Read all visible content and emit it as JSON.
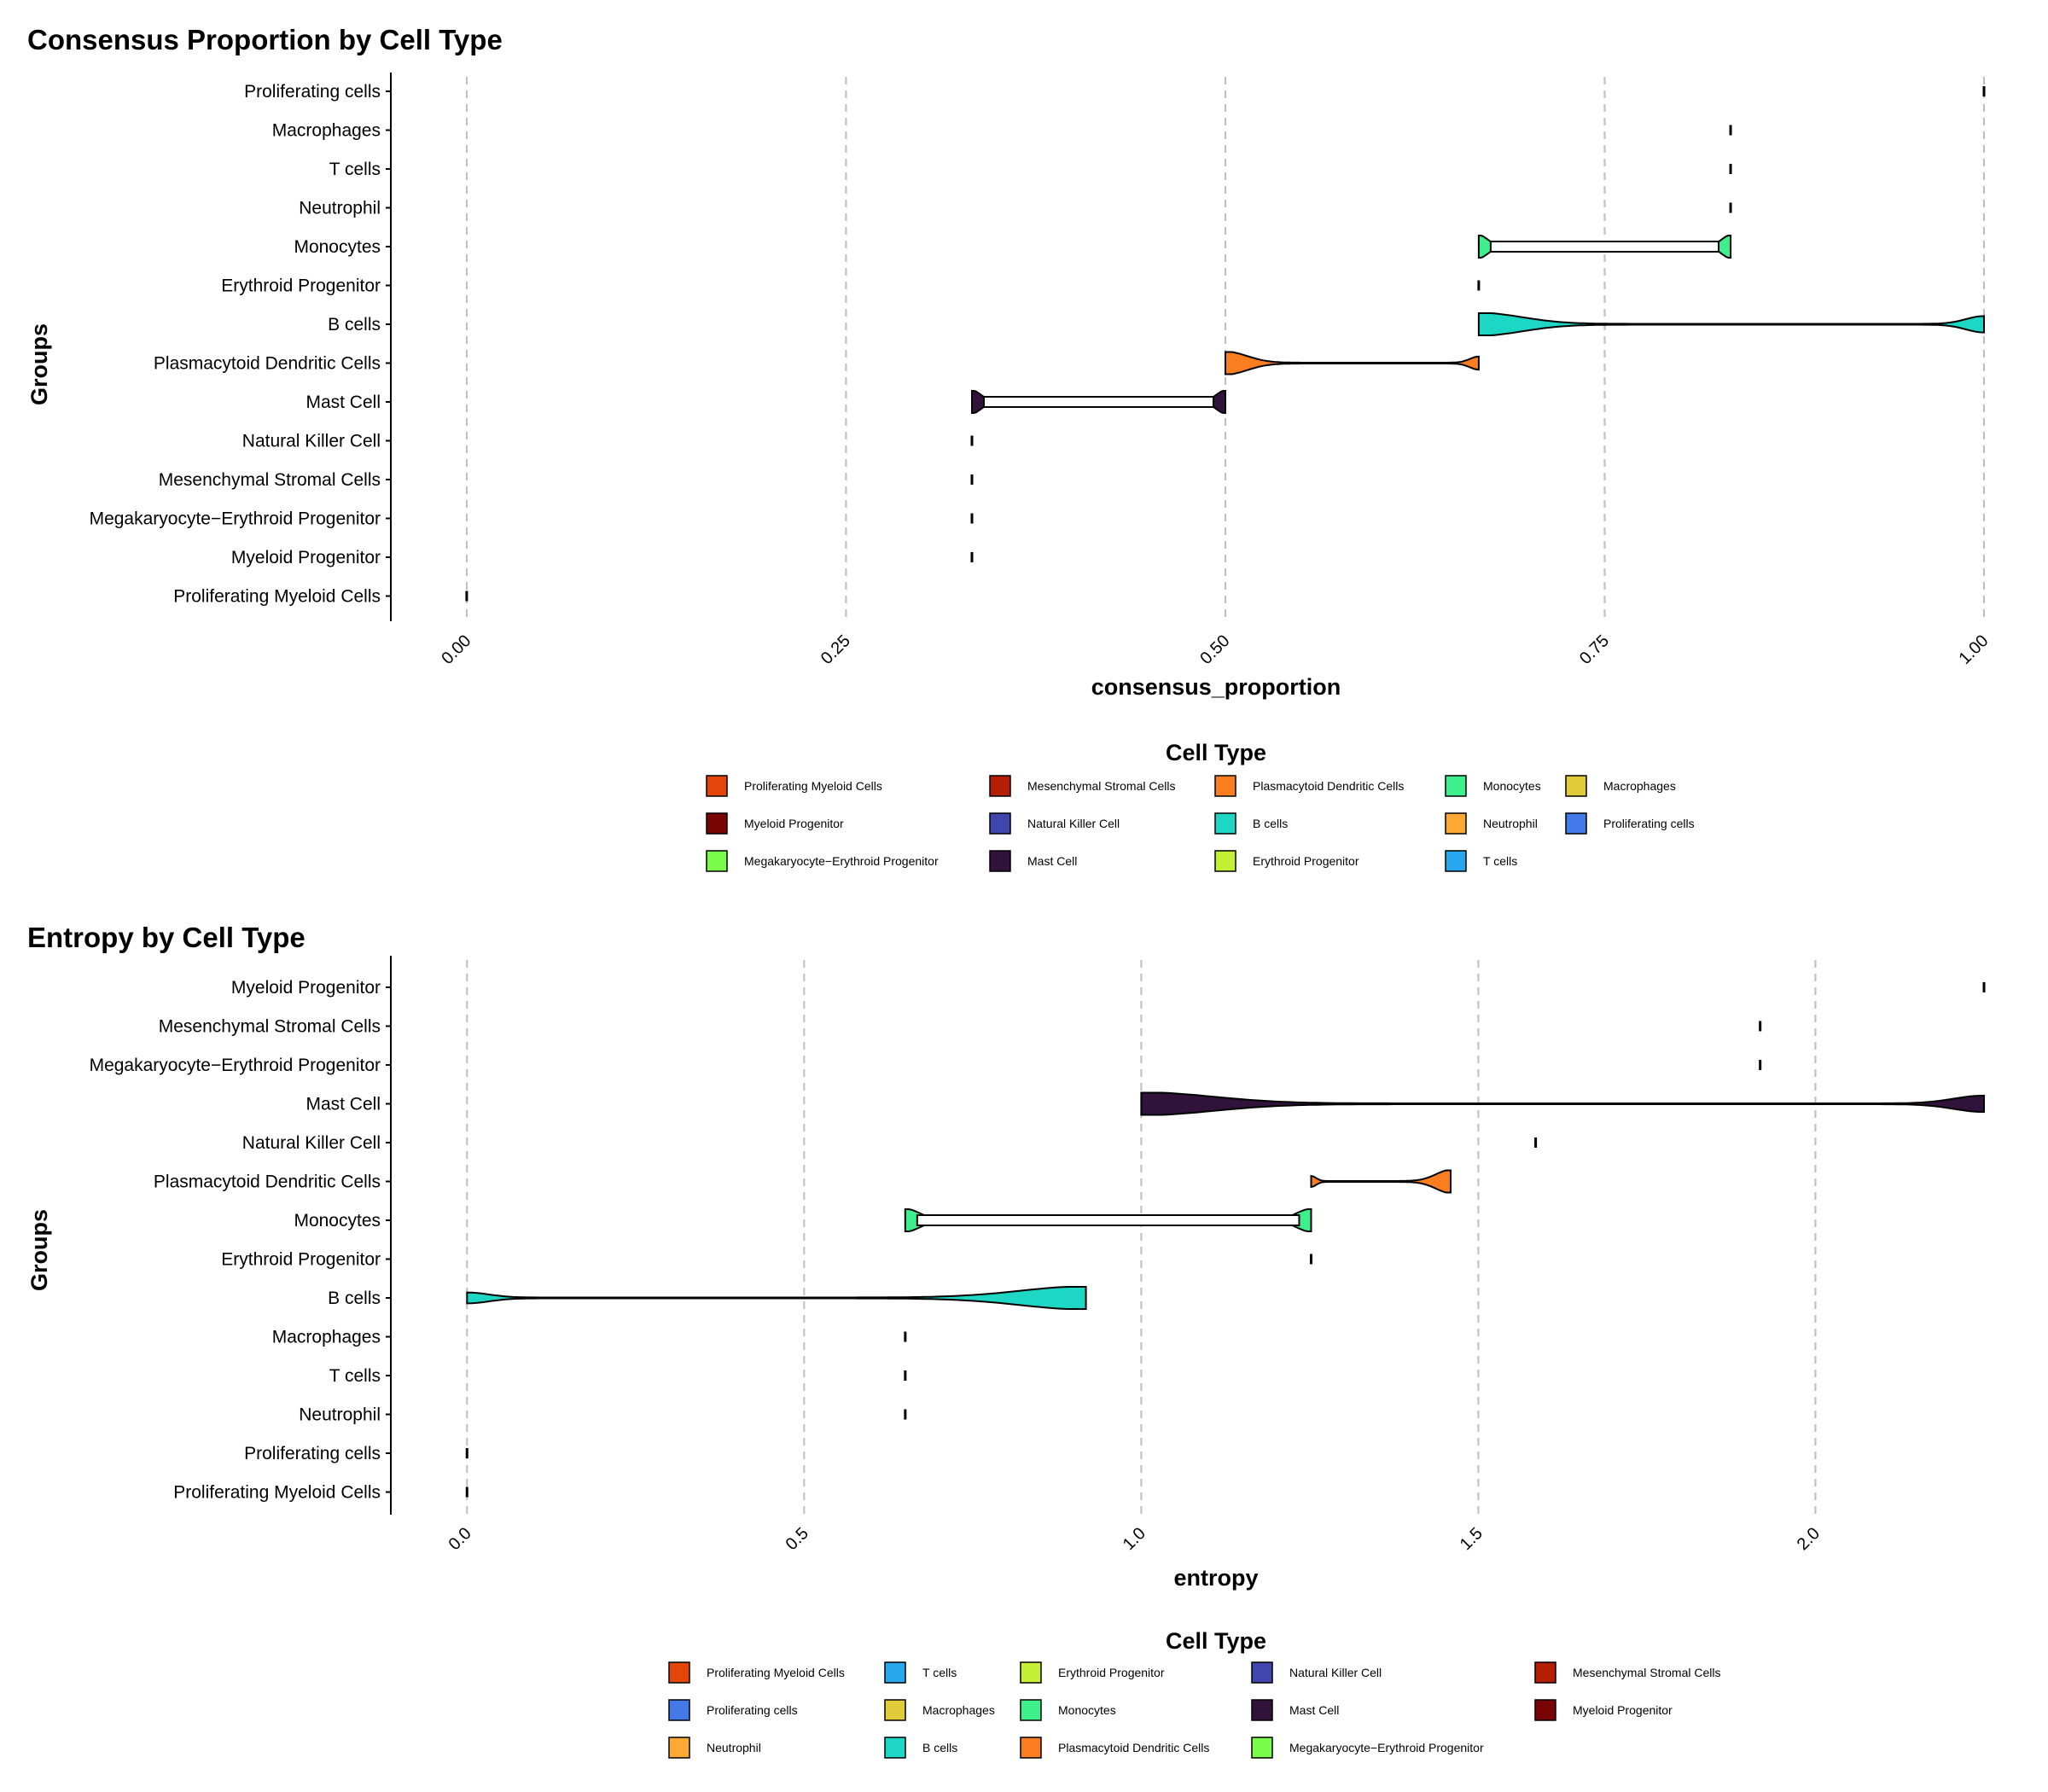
{
  "colors": {
    "Proliferating Myeloid Cells": "#e4460a",
    "Mesenchymal Stromal Cells": "#b41f04",
    "Plasmacytoid Dendritic Cells": "#fa7d20",
    "Monocytes": "#3ef08c",
    "Macrophages": "#e1cb3a",
    "Myeloid Progenitor": "#7a0403",
    "Natural Killer Cell": "#4146ac",
    "B cells": "#1ed6c4",
    "Neutrophil": "#fba835",
    "Proliferating cells": "#4479e8",
    "Megakaryocyte−Erythroid Progenitor": "#7cfc4a",
    "Mast Cell": "#30123b",
    "Erythroid Progenitor": "#c4f033",
    "T cells": "#27a8ee"
  },
  "chart_data": [
    {
      "type": "violin",
      "title": "Consensus Proportion by Cell Type",
      "xlabel": "consensus_proportion",
      "ylabel": "Groups",
      "xlim": [
        -0.05,
        1.0
      ],
      "xticks": [
        0,
        0.25,
        0.5,
        0.75,
        1.0
      ],
      "xtick_labels": [
        "0.00",
        "0.25",
        "0.50",
        "0.75",
        "1.00"
      ],
      "groups": [
        {
          "name": "Proliferating cells",
          "min": 1.0,
          "max": 1.0,
          "shape": "point"
        },
        {
          "name": "Macrophages",
          "min": 0.833,
          "max": 0.833,
          "shape": "point"
        },
        {
          "name": "T cells",
          "min": 0.833,
          "max": 0.833,
          "shape": "point"
        },
        {
          "name": "Neutrophil",
          "min": 0.833,
          "max": 0.833,
          "shape": "point"
        },
        {
          "name": "Monocytes",
          "min": 0.667,
          "max": 0.833,
          "shape": "bimodal"
        },
        {
          "name": "Erythroid Progenitor",
          "min": 0.667,
          "max": 0.667,
          "shape": "point"
        },
        {
          "name": "B cells",
          "min": 0.667,
          "max": 1.0,
          "shape": "bimodal-skew"
        },
        {
          "name": "Plasmacytoid Dendritic Cells",
          "min": 0.5,
          "max": 0.667,
          "shape": "left-heavy"
        },
        {
          "name": "Mast Cell",
          "min": 0.333,
          "max": 0.5,
          "shape": "bimodal"
        },
        {
          "name": "Natural Killer Cell",
          "min": 0.333,
          "max": 0.333,
          "shape": "point"
        },
        {
          "name": "Mesenchymal Stromal Cells",
          "min": 0.333,
          "max": 0.333,
          "shape": "point"
        },
        {
          "name": "Megakaryocyte−Erythroid Progenitor",
          "min": 0.333,
          "max": 0.333,
          "shape": "point"
        },
        {
          "name": "Myeloid Progenitor",
          "min": 0.333,
          "max": 0.333,
          "shape": "point"
        },
        {
          "name": "Proliferating Myeloid Cells",
          "min": 0.0,
          "max": 0.0,
          "shape": "point"
        }
      ],
      "legend": {
        "title": "Cell Type",
        "columns": [
          [
            "Proliferating Myeloid Cells",
            "Myeloid Progenitor",
            "Megakaryocyte−Erythroid Progenitor"
          ],
          [
            "Mesenchymal Stromal Cells",
            "Natural Killer Cell",
            "Mast Cell"
          ],
          [
            "Plasmacytoid Dendritic Cells",
            "B cells",
            "Erythroid Progenitor"
          ],
          [
            "Monocytes",
            "Neutrophil",
            "T cells"
          ],
          [
            "Macrophages",
            "Proliferating cells"
          ]
        ]
      }
    },
    {
      "type": "violin",
      "title": "Entropy by Cell Type",
      "xlabel": "entropy",
      "ylabel": "Groups",
      "xlim": [
        -0.113,
        2.25
      ],
      "xticks": [
        0,
        0.5,
        1.0,
        1.5,
        2.0
      ],
      "xtick_labels": [
        "0.0",
        "0.5",
        "1.0",
        "1.5",
        "2.0"
      ],
      "groups": [
        {
          "name": "Myeloid Progenitor",
          "min": 2.25,
          "max": 2.25,
          "shape": "point"
        },
        {
          "name": "Mesenchymal Stromal Cells",
          "min": 1.918,
          "max": 1.918,
          "shape": "point"
        },
        {
          "name": "Megakaryocyte−Erythroid Progenitor",
          "min": 1.918,
          "max": 1.918,
          "shape": "point"
        },
        {
          "name": "Mast Cell",
          "min": 1.0,
          "max": 2.25,
          "shape": "bimodal-skew"
        },
        {
          "name": "Natural Killer Cell",
          "min": 1.585,
          "max": 1.585,
          "shape": "point"
        },
        {
          "name": "Plasmacytoid Dendritic Cells",
          "min": 1.252,
          "max": 1.459,
          "shape": "right-heavy"
        },
        {
          "name": "Monocytes",
          "min": 0.65,
          "max": 1.252,
          "shape": "bimodal"
        },
        {
          "name": "Erythroid Progenitor",
          "min": 1.252,
          "max": 1.252,
          "shape": "point"
        },
        {
          "name": "B cells",
          "min": 0.0,
          "max": 0.918,
          "shape": "right-heavy"
        },
        {
          "name": "Macrophages",
          "min": 0.65,
          "max": 0.65,
          "shape": "point"
        },
        {
          "name": "T cells",
          "min": 0.65,
          "max": 0.65,
          "shape": "point"
        },
        {
          "name": "Neutrophil",
          "min": 0.65,
          "max": 0.65,
          "shape": "point"
        },
        {
          "name": "Proliferating cells",
          "min": 0.0,
          "max": 0.0,
          "shape": "point"
        },
        {
          "name": "Proliferating Myeloid Cells",
          "min": 0.0,
          "max": 0.0,
          "shape": "point"
        }
      ],
      "legend": {
        "title": "Cell Type",
        "columns": [
          [
            "Proliferating Myeloid Cells",
            "Proliferating cells",
            "Neutrophil"
          ],
          [
            "T cells",
            "Macrophages",
            "B cells"
          ],
          [
            "Erythroid Progenitor",
            "Monocytes",
            "Plasmacytoid Dendritic Cells"
          ],
          [
            "Natural Killer Cell",
            "Mast Cell",
            "Megakaryocyte−Erythroid Progenitor"
          ],
          [
            "Mesenchymal Stromal Cells",
            "Myeloid Progenitor"
          ]
        ]
      }
    }
  ]
}
